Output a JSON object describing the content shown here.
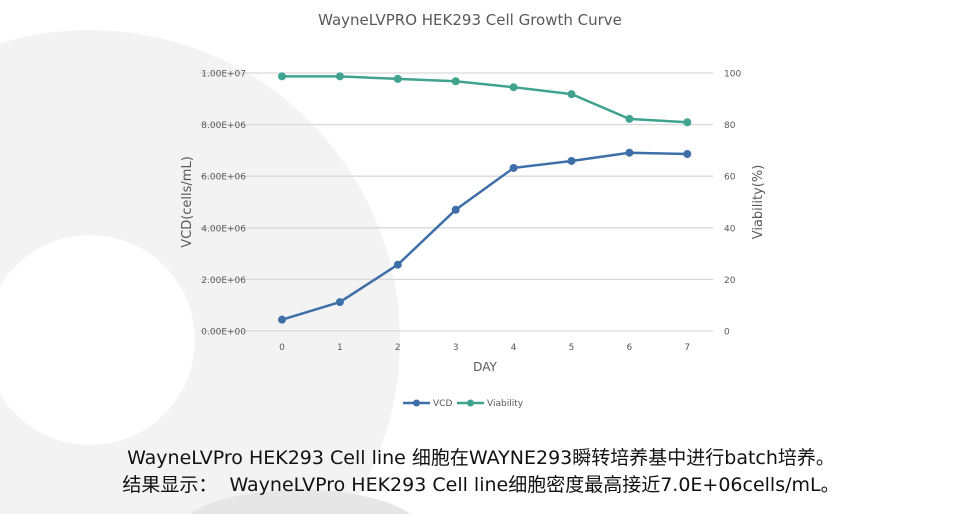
{
  "chart_data": {
    "type": "line",
    "title": "WayneLVPRO HEK293 Cell Growth Curve",
    "xlabel": "DAY",
    "ylabel": "VCD(cells/mL)",
    "y2label": "Viability(%)",
    "categories": [
      "0",
      "1",
      "2",
      "3",
      "4",
      "5",
      "6",
      "7"
    ],
    "ylim": [
      0,
      10000000
    ],
    "y2lim": [
      0,
      100
    ],
    "yticks": [
      "0.00E+00",
      "2.00E+06",
      "4.00E+06",
      "6.00E+06",
      "8.00E+06",
      "1.00E+07"
    ],
    "y2ticks": [
      "0",
      "20",
      "40",
      "60",
      "80",
      "100"
    ],
    "grid": true,
    "legend_position": "bottom",
    "series": [
      {
        "name": "VCD",
        "axis": "left",
        "color": "#3f6fa8",
        "values": [
          440000,
          1120000,
          2570000,
          4700000,
          6320000,
          6590000,
          6910000,
          6860000
        ]
      },
      {
        "name": "Viability",
        "axis": "right",
        "color": "#3fa38f",
        "values": [
          98.7,
          98.7,
          97.7,
          96.8,
          94.5,
          91.8,
          82.2,
          80.9
        ]
      }
    ]
  },
  "captions": {
    "line1": "WayneLVPro HEK293 Cell line 细胞在WAYNE293瞬转培养基中进行batch培养。",
    "line2": "结果显示：  WayneLVPro HEK293 Cell line细胞密度最高接近7.0E+06cells/mL。"
  }
}
